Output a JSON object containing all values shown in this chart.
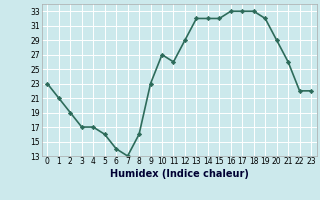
{
  "x": [
    0,
    1,
    2,
    3,
    4,
    5,
    6,
    7,
    8,
    9,
    10,
    11,
    12,
    13,
    14,
    15,
    16,
    17,
    18,
    19,
    20,
    21,
    22,
    23
  ],
  "y": [
    23,
    21,
    19,
    17,
    17,
    16,
    14,
    13,
    16,
    23,
    27,
    26,
    29,
    32,
    32,
    32,
    33,
    33,
    33,
    32,
    29,
    26,
    22,
    22
  ],
  "xlabel": "Humidex (Indice chaleur)",
  "xlim": [
    -0.5,
    23.5
  ],
  "ylim": [
    13,
    34
  ],
  "yticks": [
    13,
    15,
    17,
    19,
    21,
    23,
    25,
    27,
    29,
    31,
    33
  ],
  "xticks": [
    0,
    1,
    2,
    3,
    4,
    5,
    6,
    7,
    8,
    9,
    10,
    11,
    12,
    13,
    14,
    15,
    16,
    17,
    18,
    19,
    20,
    21,
    22,
    23
  ],
  "line_color": "#2d6b5a",
  "marker": "D",
  "marker_size": 2.2,
  "bg_color": "#cce9ec",
  "grid_color": "#ffffff",
  "line_width": 1.2,
  "tick_fontsize": 5.5,
  "xlabel_fontsize": 7.0,
  "spine_color": "#aaaaaa"
}
